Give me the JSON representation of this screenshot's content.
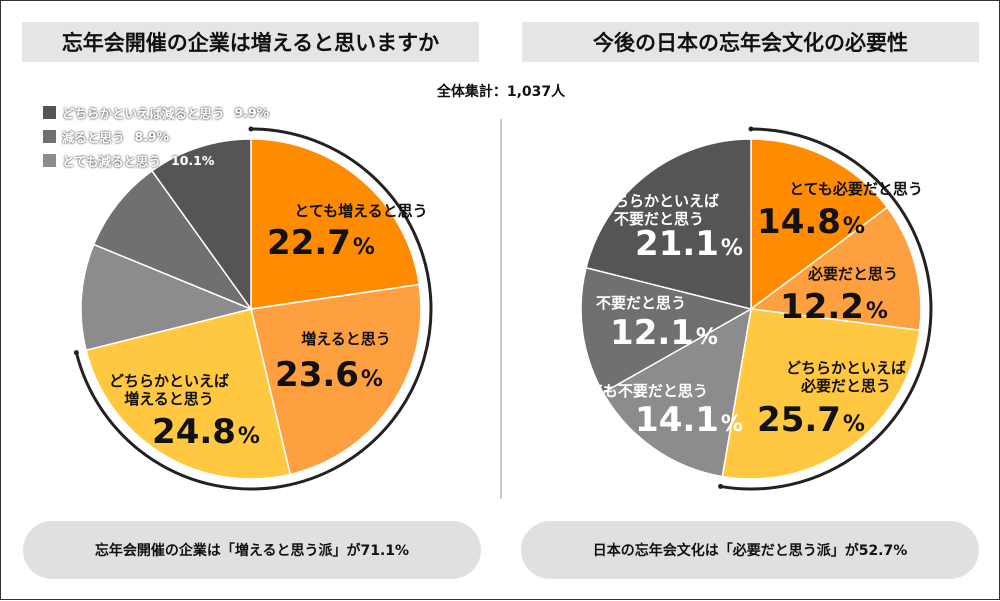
{
  "titles": {
    "left": "忘年会開催の企業は増えると思いますか",
    "right": "今後の日本の忘年会文化の必要性"
  },
  "total_label": "全体集計：1,037人",
  "chart_data": [
    {
      "type": "pie",
      "title": "忘年会開催の企業は増えると思いますか",
      "categories": [
        "とても増えると思う",
        "増えると思う",
        "どちらかといえば増えると思う",
        "とても減ると思う",
        "減ると思う",
        "どちらかといえば減ると思う"
      ],
      "label_lines": [
        [
          "とても増えると思う"
        ],
        [
          "増えると思う"
        ],
        [
          "どちらかといえば",
          "増えると思う"
        ],
        [],
        [],
        []
      ],
      "values": [
        22.7,
        23.6,
        24.8,
        10.1,
        8.9,
        9.9
      ],
      "value_labels": [
        "22.7",
        "23.6",
        "24.8",
        "10.1",
        "8.9",
        "9.9"
      ],
      "colors": [
        "#ff8c00",
        "#ffa040",
        "#ffc840",
        "#8c8c8c",
        "#707070",
        "#555555"
      ],
      "label_colors": [
        "#111111",
        "#111111",
        "#111111",
        "#ffffff",
        "#ffffff",
        "#ffffff"
      ],
      "legend": [
        {
          "label": "どちらかといえば減ると思う",
          "value": "9.9%",
          "color": "#555555"
        },
        {
          "label": "減ると思う",
          "value": "8.9%",
          "color": "#707070"
        },
        {
          "label": "とても減ると思う",
          "value": "10.1%",
          "color": "#8c8c8c"
        }
      ],
      "unit": "%",
      "summary": "忘年会開催の企業は「増えると思う派」が71.1%"
    },
    {
      "type": "pie",
      "title": "今後の日本の忘年会文化の必要性",
      "categories": [
        "とても必要だと思う",
        "必要だと思う",
        "どちらかといえば必要だと思う",
        "とても不要だと思う",
        "不要だと思う",
        "どちらかといえば不要だと思う"
      ],
      "label_lines": [
        [
          "とても必要だと思う"
        ],
        [
          "必要だと思う"
        ],
        [
          "どちらかといえば",
          "必要だと思う"
        ],
        [
          "とても不要だと思う"
        ],
        [
          "不要だと思う"
        ],
        [
          "どちらかといえば",
          "不要だと思う"
        ]
      ],
      "values": [
        14.8,
        12.2,
        25.7,
        14.1,
        12.1,
        21.1
      ],
      "value_labels": [
        "14.8",
        "12.2",
        "25.7",
        "14.1",
        "12.1",
        "21.1"
      ],
      "colors": [
        "#ff8c00",
        "#ffa040",
        "#ffc840",
        "#8c8c8c",
        "#707070",
        "#555555"
      ],
      "label_colors": [
        "#111111",
        "#111111",
        "#111111",
        "#ffffff",
        "#ffffff",
        "#ffffff"
      ],
      "unit": "%",
      "summary": "日本の忘年会文化は「必要だと思う派」が52.7%"
    }
  ]
}
